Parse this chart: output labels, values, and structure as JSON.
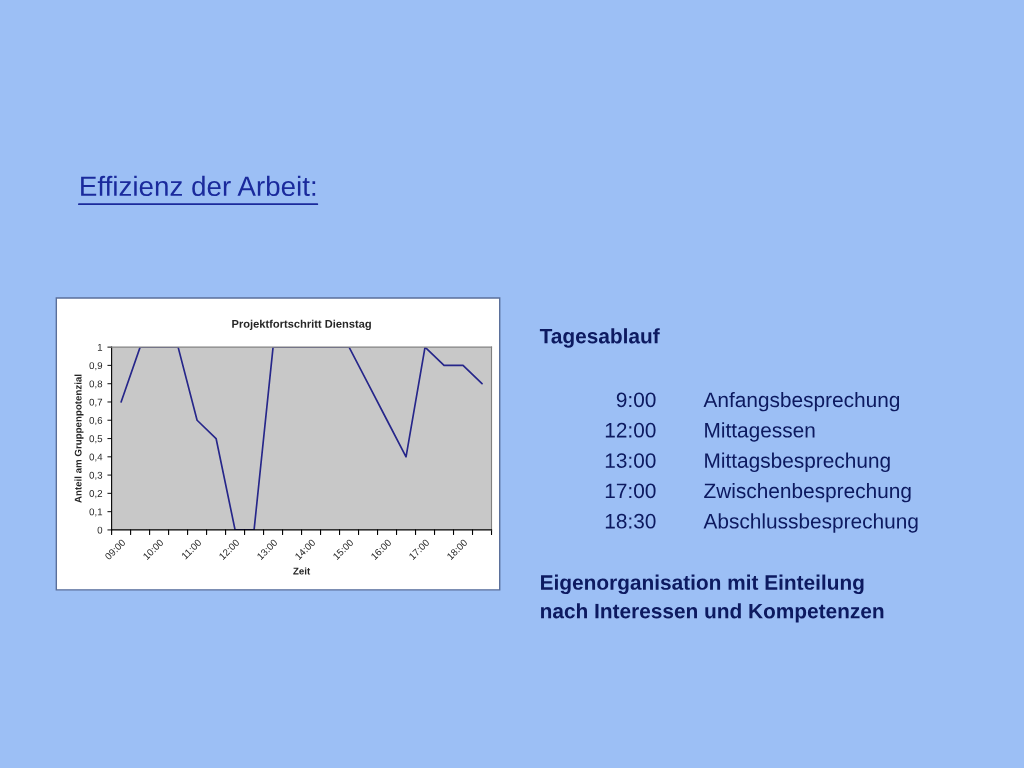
{
  "chart_data": {
    "type": "line",
    "title": "Projektfortschritt Dienstag",
    "xlabel": "Zeit",
    "ylabel": "Anteil am Gruppenpotenzial",
    "categories": [
      "09:00",
      null,
      "10:00",
      null,
      "11:00",
      null,
      "12:00",
      null,
      "13:00",
      null,
      "14:00",
      null,
      "15:00",
      null,
      "16:00",
      null,
      "17:00",
      null,
      "18:00",
      null
    ],
    "series": [
      {
        "color": "#26268a",
        "values": [
          0.7,
          1,
          1,
          1,
          0.6,
          0.5,
          0,
          0,
          1,
          1,
          1,
          1,
          1,
          0.8,
          0.6,
          0.4,
          1,
          0.9,
          0.9,
          0.8
        ]
      }
    ],
    "ylim": [
      0,
      1
    ],
    "yticks": [
      0,
      {
        "value": 0.1,
        "label": "0,1"
      },
      {
        "value": 0.2,
        "label": "0,2"
      },
      {
        "value": 0.3,
        "label": "0,3"
      },
      {
        "value": 0.4,
        "label": "0,4"
      },
      {
        "value": 0.5,
        "label": "0,5"
      },
      {
        "value": 0.6,
        "label": "0,6"
      },
      {
        "value": 0.7,
        "label": "0,7"
      },
      {
        "value": 0.8,
        "label": "0,8"
      },
      {
        "value": 0.9,
        "label": "0,9"
      },
      1
    ],
    "legend": false,
    "marker": "none",
    "line_style": "solid",
    "annotations": [
      "Effizienz der Arbeit:",
      "Tagesablauf",
      "9:00",
      "Anfangsbesprechung",
      "12:00",
      "Mittagessen",
      "13:00",
      "Mittagsbesprechung",
      "17:00",
      "Zwischenbesprechung",
      "18:30",
      "Abschlussbesprechung",
      "Eigenorganisation mit Einteilung\nnach Interessen und Kompetenzen"
    ]
  }
}
